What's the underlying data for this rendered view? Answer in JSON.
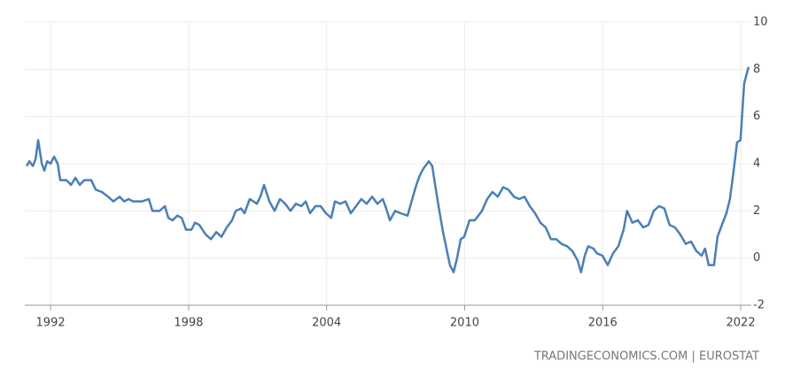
{
  "chart_data": {
    "type": "line",
    "source": "TRADINGECONOMICS.COM | EUROSTAT",
    "xlim": [
      1990.88,
      2022.46
    ],
    "xticks": [
      1992,
      1998,
      2004,
      2010,
      2016,
      2022
    ],
    "ylim": [
      -2,
      10
    ],
    "yticks": [
      -2,
      0,
      2,
      4,
      6,
      8,
      10
    ],
    "grid": true,
    "series": [
      {
        "color": "#4a7fb5",
        "x": [
          1990.96,
          1991.08,
          1991.23,
          1991.35,
          1991.46,
          1991.62,
          1991.73,
          1991.85,
          1992.0,
          1992.15,
          1992.31,
          1992.42,
          1992.69,
          1992.89,
          1993.08,
          1993.27,
          1993.46,
          1993.77,
          1993.96,
          1994.23,
          1994.5,
          1994.73,
          1995.0,
          1995.2,
          1995.39,
          1995.58,
          1995.97,
          1996.27,
          1996.43,
          1996.74,
          1996.97,
          1997.12,
          1997.31,
          1997.51,
          1997.7,
          1997.89,
          1998.12,
          1998.28,
          1998.47,
          1998.74,
          1998.97,
          1999.2,
          1999.43,
          1999.66,
          1999.89,
          2000.05,
          2000.28,
          2000.43,
          2000.66,
          2000.97,
          2001.12,
          2001.28,
          2001.51,
          2001.74,
          2001.97,
          2002.2,
          2002.43,
          2002.66,
          2002.9,
          2003.09,
          2003.28,
          2003.51,
          2003.74,
          2003.97,
          2004.2,
          2004.36,
          2004.59,
          2004.82,
          2005.05,
          2005.28,
          2005.51,
          2005.74,
          2005.98,
          2006.21,
          2006.44,
          2006.59,
          2006.75,
          2006.98,
          2007.21,
          2007.52,
          2007.75,
          2007.9,
          2008.05,
          2008.21,
          2008.44,
          2008.59,
          2008.75,
          2008.9,
          2009.06,
          2009.21,
          2009.36,
          2009.52,
          2009.67,
          2009.83,
          2009.98,
          2010.21,
          2010.44,
          2010.6,
          2010.75,
          2010.98,
          2011.21,
          2011.44,
          2011.67,
          2011.9,
          2012.14,
          2012.37,
          2012.6,
          2012.83,
          2013.06,
          2013.29,
          2013.52,
          2013.75,
          2013.98,
          2014.21,
          2014.45,
          2014.68,
          2014.91,
          2015.06,
          2015.22,
          2015.37,
          2015.6,
          2015.75,
          2015.99,
          2016.22,
          2016.45,
          2016.68,
          2016.91,
          2017.06,
          2017.29,
          2017.53,
          2017.76,
          2017.99,
          2018.22,
          2018.45,
          2018.68,
          2018.91,
          2019.14,
          2019.37,
          2019.61,
          2019.84,
          2020.07,
          2020.3,
          2020.45,
          2020.61,
          2020.84,
          2020.99,
          2021.22,
          2021.38,
          2021.53,
          2021.68,
          2021.84,
          2021.99,
          2022.15,
          2022.34
        ],
        "values": [
          3.9,
          4.1,
          3.9,
          4.2,
          5.0,
          4.0,
          3.7,
          4.1,
          4.0,
          4.3,
          4.0,
          3.3,
          3.3,
          3.1,
          3.4,
          3.1,
          3.3,
          3.3,
          2.9,
          2.8,
          2.6,
          2.4,
          2.6,
          2.4,
          2.5,
          2.4,
          2.4,
          2.5,
          2.0,
          2.0,
          2.2,
          1.7,
          1.6,
          1.8,
          1.7,
          1.2,
          1.2,
          1.5,
          1.4,
          1.0,
          0.8,
          1.1,
          0.9,
          1.3,
          1.6,
          2.0,
          2.1,
          1.9,
          2.5,
          2.3,
          2.6,
          3.1,
          2.4,
          2.0,
          2.5,
          2.3,
          2.0,
          2.3,
          2.2,
          2.4,
          1.9,
          2.2,
          2.2,
          1.9,
          1.7,
          2.4,
          2.3,
          2.4,
          1.9,
          2.2,
          2.5,
          2.3,
          2.6,
          2.3,
          2.5,
          2.1,
          1.6,
          2.0,
          1.9,
          1.8,
          2.6,
          3.1,
          3.5,
          3.8,
          4.1,
          3.9,
          2.9,
          2.0,
          1.1,
          0.4,
          -0.3,
          -0.6,
          0.0,
          0.8,
          0.9,
          1.6,
          1.6,
          1.8,
          2.0,
          2.5,
          2.8,
          2.6,
          3.0,
          2.9,
          2.6,
          2.5,
          2.6,
          2.2,
          1.9,
          1.5,
          1.3,
          0.8,
          0.8,
          0.6,
          0.5,
          0.3,
          -0.1,
          -0.6,
          0.1,
          0.5,
          0.4,
          0.2,
          0.1,
          -0.3,
          0.2,
          0.5,
          1.2,
          2.0,
          1.5,
          1.6,
          1.3,
          1.4,
          2.0,
          2.2,
          2.1,
          1.4,
          1.3,
          1.0,
          0.6,
          0.7,
          0.3,
          0.1,
          0.4,
          -0.3,
          -0.3,
          0.9,
          1.5,
          1.9,
          2.5,
          3.6,
          4.9,
          5.0,
          7.4,
          8.1
        ]
      }
    ]
  }
}
